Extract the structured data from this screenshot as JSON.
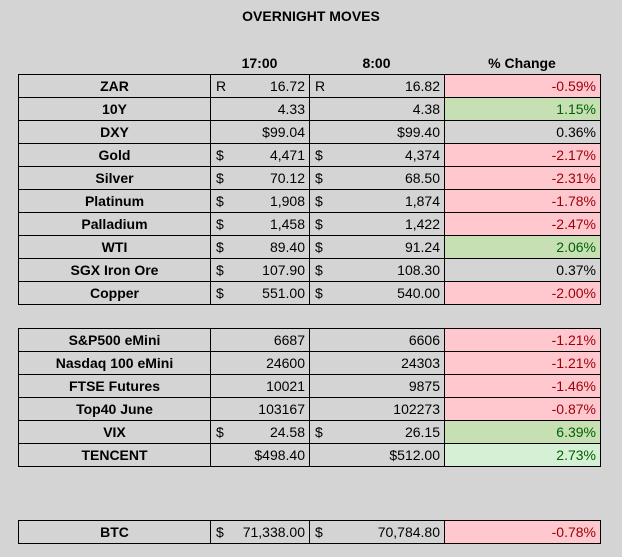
{
  "title": "OVERNIGHT MOVES",
  "headers": {
    "col1": "17:00",
    "col2": "8:00",
    "col3": "% Change"
  },
  "rows_a": [
    {
      "name": "ZAR",
      "c1": "R",
      "v1": "16.72",
      "c2": "R",
      "v2": "16.82",
      "pct": "-0.59%",
      "tone": "red"
    },
    {
      "name": "10Y",
      "c1": "",
      "v1": "4.33",
      "c2": "",
      "v2": "4.38",
      "pct": "1.15%",
      "tone": "green"
    },
    {
      "name": "DXY",
      "c1": "",
      "v1": "$99.04",
      "c2": "",
      "v2": "$99.40",
      "pct": "0.36%",
      "tone": "neutral"
    },
    {
      "name": "Gold",
      "c1": "$",
      "v1": "4,471",
      "c2": "$",
      "v2": "4,374",
      "pct": "-2.17%",
      "tone": "red"
    },
    {
      "name": "Silver",
      "c1": "$",
      "v1": "70.12",
      "c2": "$",
      "v2": "68.50",
      "pct": "-2.31%",
      "tone": "red"
    },
    {
      "name": "Platinum",
      "c1": "$",
      "v1": "1,908",
      "c2": "$",
      "v2": "1,874",
      "pct": "-1.78%",
      "tone": "red"
    },
    {
      "name": "Palladium",
      "c1": "$",
      "v1": "1,458",
      "c2": "$",
      "v2": "1,422",
      "pct": "-2.47%",
      "tone": "red"
    },
    {
      "name": "WTI",
      "c1": "$",
      "v1": "89.40",
      "c2": "$",
      "v2": "91.24",
      "pct": "2.06%",
      "tone": "green"
    },
    {
      "name": "SGX Iron Ore",
      "c1": "$",
      "v1": "107.90",
      "c2": "$",
      "v2": "108.30",
      "pct": "0.37%",
      "tone": "neutral"
    },
    {
      "name": "Copper",
      "c1": "$",
      "v1": "551.00",
      "c2": "$",
      "v2": "540.00",
      "pct": "-2.00%",
      "tone": "red"
    }
  ],
  "rows_b": [
    {
      "name": "S&P500 eMini",
      "c1": "",
      "v1": "6687",
      "c2": "",
      "v2": "6606",
      "pct": "-1.21%",
      "tone": "red"
    },
    {
      "name": "Nasdaq 100 eMini",
      "c1": "",
      "v1": "24600",
      "c2": "",
      "v2": "24303",
      "pct": "-1.21%",
      "tone": "red"
    },
    {
      "name": "FTSE Futures",
      "c1": "",
      "v1": "10021",
      "c2": "",
      "v2": "9875",
      "pct": "-1.46%",
      "tone": "red"
    },
    {
      "name": "Top40 June",
      "c1": "",
      "v1": "103167",
      "c2": "",
      "v2": "102273",
      "pct": "-0.87%",
      "tone": "red"
    },
    {
      "name": "VIX",
      "c1": "$",
      "v1": "24.58",
      "c2": "$",
      "v2": "26.15",
      "pct": "6.39%",
      "tone": "green"
    },
    {
      "name": "TENCENT",
      "c1": "",
      "v1": "$498.40",
      "c2": "",
      "v2": "$512.00",
      "pct": "2.73%",
      "tone": "lgreen"
    }
  ],
  "rows_c": [
    {
      "name": "BTC",
      "c1": "$",
      "v1": "71,338.00",
      "c2": "$",
      "v2": "70,784.80",
      "pct": "-0.78%",
      "tone": "red"
    }
  ],
  "colors": {
    "negative_bg": "#ffc7ce",
    "negative_text": "#9c0006",
    "positive_bg": "#c6e0b4",
    "positive_text": "#006100",
    "background": "#d4d4d4"
  }
}
